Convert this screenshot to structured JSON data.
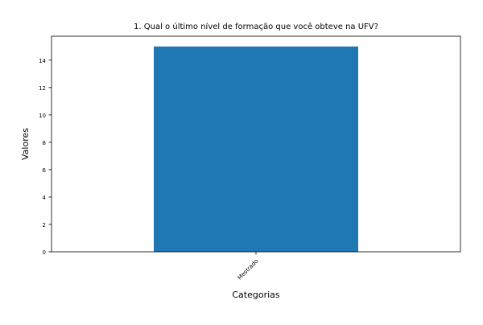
{
  "chart_data": {
    "type": "bar",
    "title": "1. Qual o último nível de formação que você obteve na UFV?",
    "xlabel": "Categorias",
    "ylabel": "Valores",
    "categories": [
      "Mestrado"
    ],
    "values": [
      15
    ],
    "ylim": [
      0,
      15.75
    ],
    "yticks": [
      0,
      2,
      4,
      6,
      8,
      10,
      12,
      14
    ],
    "grid": false,
    "legend": "none",
    "colors": {
      "bar": "#1f77b4",
      "axes": "#000000",
      "background": "#ffffff"
    }
  }
}
